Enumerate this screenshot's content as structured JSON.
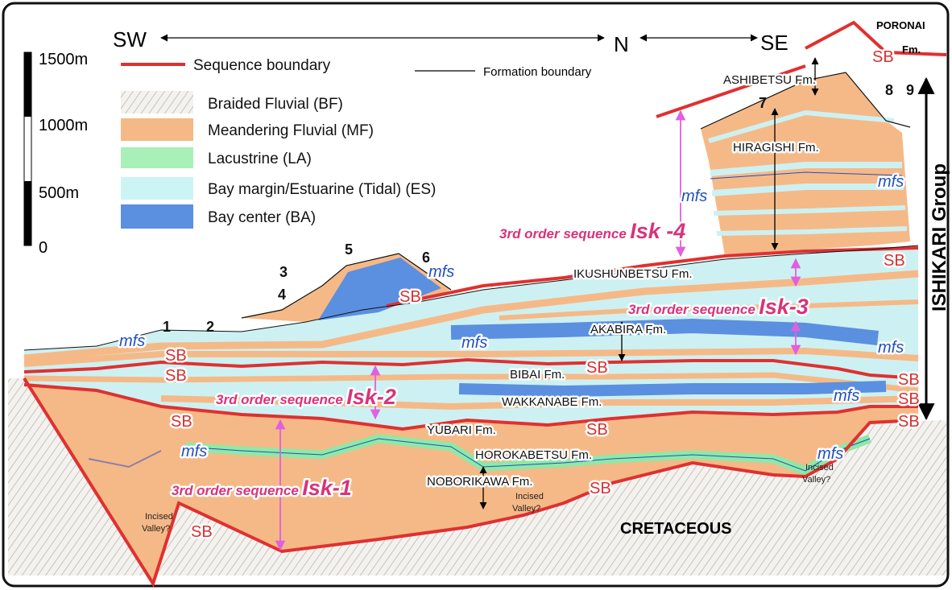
{
  "directions": {
    "sw": "SW",
    "n": "N",
    "se": "SE"
  },
  "scale": [
    "1500m",
    "1000m",
    "500m",
    "0"
  ],
  "legend": {
    "sequence_boundary": "Sequence boundary",
    "formation_boundary": "Formation boundary",
    "facies": [
      "Braided Fluvial  (BF)",
      "Meandering Fluvial (MF)",
      "Lacustrine (LA)",
      "Bay margin/Estuarine  (Tidal)  (ES)",
      "Bay center (BA)"
    ]
  },
  "columns": [
    "1",
    "2",
    "3",
    "4",
    "5",
    "6",
    "7",
    "8",
    "9"
  ],
  "formations": {
    "poronai": [
      "PORONAI",
      "Fm."
    ],
    "ashibetsu": "ASHIBETSU Fm.",
    "hiragishi": "HIRAGISHI Fm.",
    "ikushunbetsu": "IKUSHUNBETSU Fm.",
    "akabira": "AKABIRA Fm.",
    "bibai": "BIBAI Fm.",
    "wakkanabe": "WAKKANABE Fm.",
    "yubari": "YUBARI Fm.",
    "horokabetsu": "HOROKABETSU Fm.",
    "noborikawa": "NOBORIKAWA Fm."
  },
  "sequences": [
    {
      "prefix": "3rd order sequence",
      "name": "Isk -4"
    },
    {
      "prefix": "3rd order sequence",
      "name": "Isk-3"
    },
    {
      "prefix": "3rd order sequence",
      "name": "Isk-2"
    },
    {
      "prefix": "3rd order sequence",
      "name": "Isk-1"
    }
  ],
  "group": "ISHIKARI Group",
  "basement": "CRETACEOUS",
  "incised_valley": [
    [
      "Incised",
      "Valley?"
    ],
    [
      "Incised",
      "Valley?"
    ],
    [
      "Incised",
      "Valley?"
    ]
  ],
  "sb": [
    "SB",
    "SB",
    "SB",
    "SB",
    "SB",
    "SB",
    "SB",
    "SB",
    "SB",
    "SB",
    "SB",
    "SB",
    "SB"
  ],
  "mfs": [
    "mfs",
    "mfs",
    "mfs",
    "mfs",
    "mfs",
    "mfs",
    "mfs",
    "mfs",
    "mfs"
  ]
}
